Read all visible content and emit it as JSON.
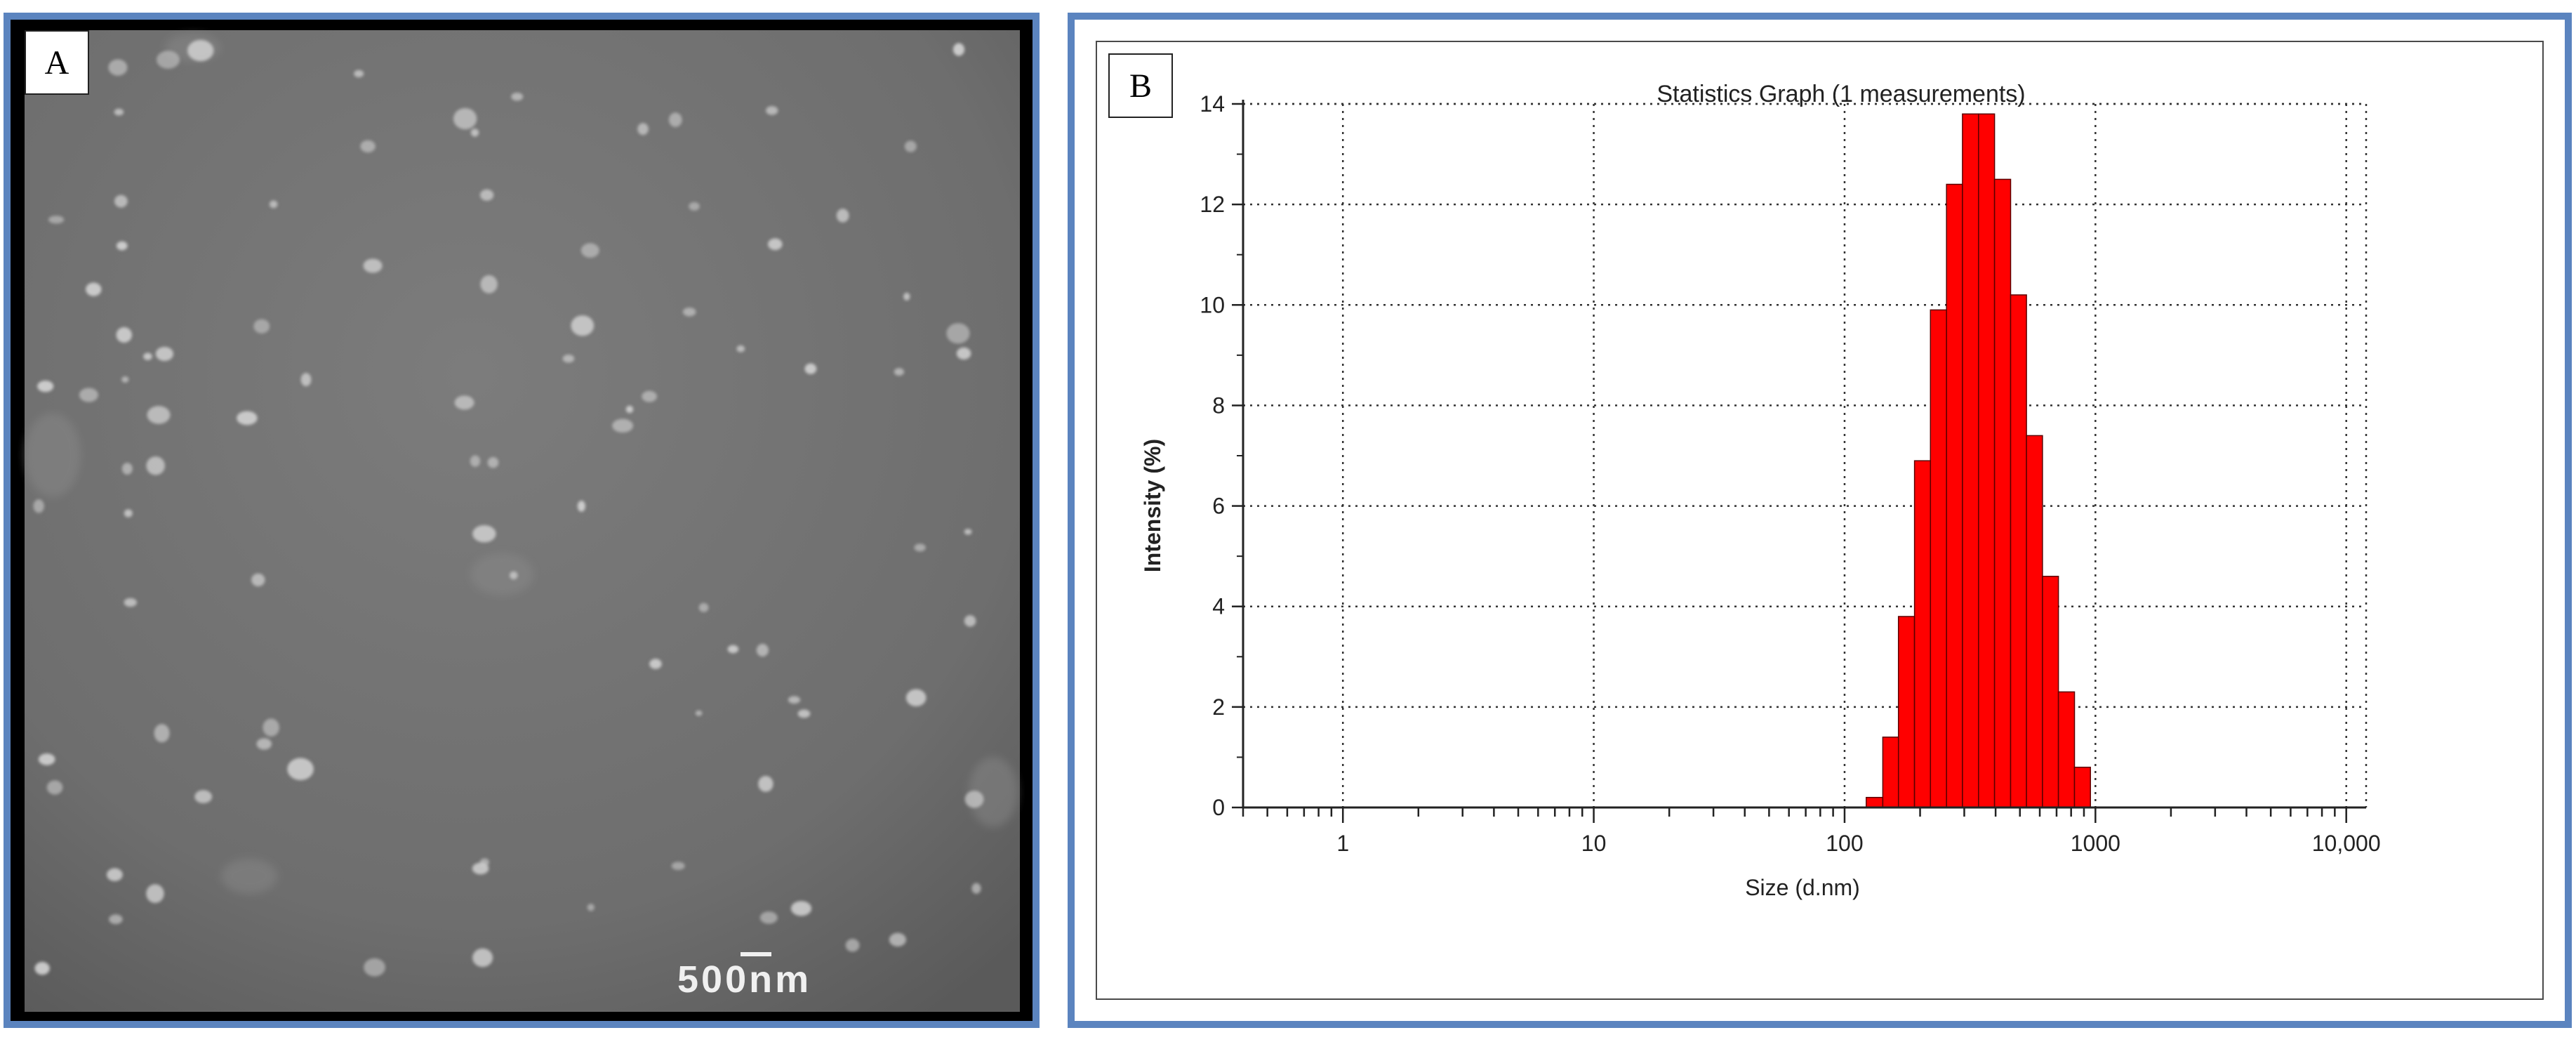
{
  "panels": {
    "left": {
      "label": "A",
      "scale_bar_label": "500nm"
    },
    "right": {
      "label": "B"
    }
  },
  "colors": {
    "panel_border": "#5b84bf",
    "bar_fill": "#ff0000",
    "bar_stroke": "#5a0000"
  },
  "chart_data": {
    "type": "bar",
    "title": "Statistics Graph (1 measurements)",
    "xlabel": "Size (d.nm)",
    "ylabel": "Intensity (%)",
    "x_scale": "log",
    "xlim": [
      0.4,
      12000
    ],
    "ylim": [
      0,
      14
    ],
    "x_ticks": [
      {
        "value": 1,
        "label": "1"
      },
      {
        "value": 10,
        "label": "10"
      },
      {
        "value": 100,
        "label": "100"
      },
      {
        "value": 1000,
        "label": "1000"
      },
      {
        "value": 10000,
        "label": "10,000"
      }
    ],
    "y_ticks": [
      {
        "value": 0,
        "label": "0"
      },
      {
        "value": 2,
        "label": "2"
      },
      {
        "value": 4,
        "label": "4"
      },
      {
        "value": 6,
        "label": "6"
      },
      {
        "value": 8,
        "label": "8"
      },
      {
        "value": 10,
        "label": "10"
      },
      {
        "value": 12,
        "label": "12"
      },
      {
        "value": 14,
        "label": "14"
      }
    ],
    "grid": true,
    "bins": [
      {
        "x0": 122,
        "x1": 142,
        "y": 0.2
      },
      {
        "x0": 142,
        "x1": 164,
        "y": 1.4
      },
      {
        "x0": 164,
        "x1": 190,
        "y": 3.8
      },
      {
        "x0": 190,
        "x1": 220,
        "y": 6.9
      },
      {
        "x0": 220,
        "x1": 255,
        "y": 9.9
      },
      {
        "x0": 255,
        "x1": 295,
        "y": 12.4
      },
      {
        "x0": 295,
        "x1": 342,
        "y": 13.8
      },
      {
        "x0": 342,
        "x1": 396,
        "y": 13.8
      },
      {
        "x0": 396,
        "x1": 459,
        "y": 12.5
      },
      {
        "x0": 459,
        "x1": 531,
        "y": 10.2
      },
      {
        "x0": 531,
        "x1": 615,
        "y": 7.4
      },
      {
        "x0": 615,
        "x1": 712,
        "y": 4.6
      },
      {
        "x0": 712,
        "x1": 825,
        "y": 2.3
      },
      {
        "x0": 825,
        "x1": 955,
        "y": 0.8
      }
    ]
  }
}
